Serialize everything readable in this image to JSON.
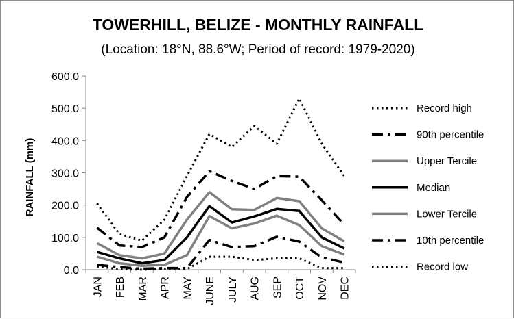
{
  "chart_data": {
    "type": "line",
    "title": "TOWERHILL, BELIZE - MONTHLY RAINFALL",
    "subtitle": "(Location: 18°N, 88.6°W; Period of record: 1979-2020)",
    "xlabel": "",
    "ylabel": "RAINFALL (mm)",
    "ylim": [
      0,
      600
    ],
    "yticks": [
      "0.0",
      "100.0",
      "200.0",
      "300.0",
      "400.0",
      "500.0",
      "600.0"
    ],
    "categories": [
      "JAN",
      "FEB",
      "MAR",
      "APR",
      "MAY",
      "JUNE",
      "JULY",
      "AUG",
      "SEP",
      "OCT",
      "NOV",
      "DEC"
    ],
    "grid": false,
    "legend_position": "right",
    "series": [
      {
        "name": "Record high",
        "style": "dotted",
        "color": "#000000",
        "values": [
          205,
          110,
          90,
          155,
          290,
          420,
          380,
          445,
          390,
          530,
          390,
          290
        ]
      },
      {
        "name": "90th percentile",
        "style": "dashdot",
        "color": "#000000",
        "values": [
          130,
          75,
          70,
          100,
          225,
          305,
          275,
          250,
          290,
          288,
          215,
          140
        ]
      },
      {
        "name": "Upper Tercile",
        "style": "solid",
        "color": "#808080",
        "values": [
          82,
          45,
          35,
          50,
          155,
          240,
          187,
          185,
          222,
          212,
          128,
          88
        ]
      },
      {
        "name": "Median",
        "style": "solid",
        "color": "#000000",
        "values": [
          55,
          35,
          20,
          30,
          100,
          197,
          146,
          165,
          188,
          182,
          100,
          66
        ]
      },
      {
        "name": "Lower Tercile",
        "style": "solid",
        "color": "#808080",
        "values": [
          40,
          20,
          12,
          15,
          45,
          166,
          128,
          143,
          167,
          138,
          73,
          47
        ]
      },
      {
        "name": "10th percentile",
        "style": "dashdot",
        "color": "#000000",
        "values": [
          15,
          8,
          3,
          5,
          5,
          92,
          70,
          73,
          102,
          87,
          38,
          22
        ]
      },
      {
        "name": "Record low",
        "style": "dotted",
        "color": "#000000",
        "values": [
          10,
          2,
          0,
          3,
          2,
          40,
          40,
          30,
          35,
          35,
          5,
          5
        ]
      }
    ]
  }
}
